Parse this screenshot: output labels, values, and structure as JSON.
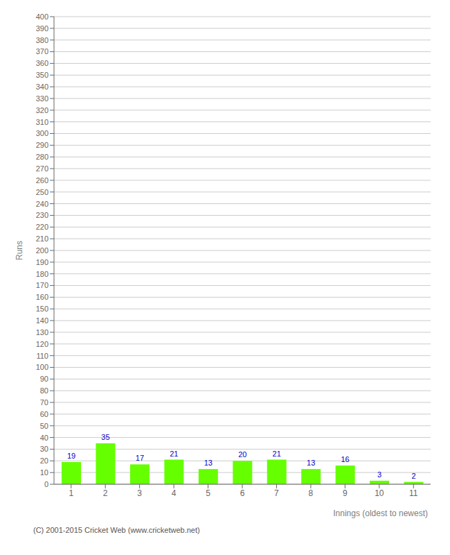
{
  "chart_data": {
    "type": "bar",
    "categories": [
      1,
      2,
      3,
      4,
      5,
      6,
      7,
      8,
      9,
      10,
      11
    ],
    "values": [
      19,
      35,
      17,
      21,
      13,
      20,
      21,
      13,
      16,
      3,
      2
    ],
    "color": "#66ff00",
    "x_label": "Innings (oldest to newest)",
    "y_label": "Runs",
    "ylim": [
      0,
      400
    ],
    "yticks": [
      0,
      10,
      20,
      30,
      40,
      50,
      60,
      70,
      80,
      90,
      100,
      110,
      120,
      130,
      140,
      150,
      160,
      170,
      180,
      190,
      200,
      210,
      220,
      230,
      240,
      250,
      260,
      270,
      280,
      290,
      300,
      310,
      320,
      330,
      340,
      350,
      360,
      370,
      380,
      390,
      400
    ],
    "grid": true,
    "data_labels": true,
    "annotations": [
      "(C) 2001-2015 Cricket Web (www.cricketweb.net)"
    ]
  }
}
